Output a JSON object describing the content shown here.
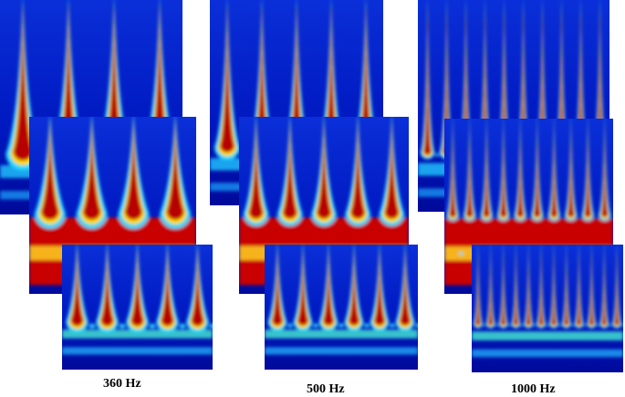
{
  "labels": [
    "360 Hz",
    "500 Hz",
    "1000 Hz"
  ]
}
